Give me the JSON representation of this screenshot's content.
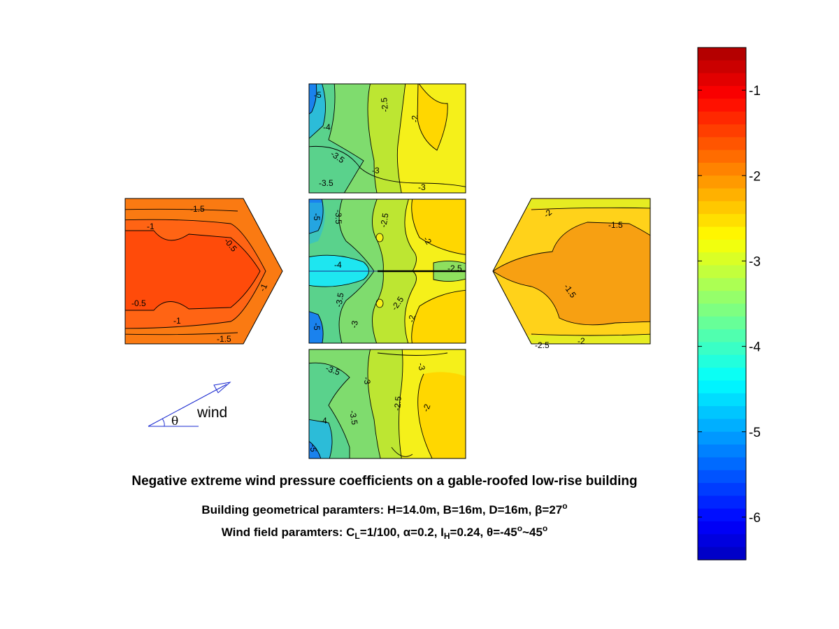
{
  "chart_data": {
    "type": "heatmap",
    "title": "Negative extreme wind pressure coefficients on a gable-roofed low-rise building",
    "subtitle_geometry": {
      "prefix": "Building geometrical paramters: H=14.0m, B=16m, D=16m, ",
      "beta": "β",
      "beta_value": "=27",
      "degree_sup": "o"
    },
    "subtitle_wind": {
      "cl_main": "C",
      "cl_sub": "L",
      "cl_value": "=1/100, ",
      "alpha": "α",
      "alpha_value": "=0.2, I",
      "ih_sub": "H",
      "ih_value": "=0.24, ",
      "theta": "θ",
      "theta_value": "=-45",
      "deg1": "o",
      "tilde": "~45",
      "deg2": "o"
    },
    "colorbar": {
      "range": [
        -6.5,
        -0.5
      ],
      "ticks": [
        -1,
        -2,
        -3,
        -4,
        -5,
        -6
      ],
      "tick_labels": [
        "-1",
        "-2",
        "-3",
        "-4",
        "-5",
        "-6"
      ],
      "colormap": "jet",
      "levels": 40
    },
    "wind_indicator": {
      "label": "wind",
      "angle_symbol": "θ"
    },
    "panels": [
      {
        "name": "left-end-wall",
        "contour_labels": [
          "-1.5",
          "-1",
          "-0.5",
          "-0.5",
          "-1",
          "-1",
          "-1.5"
        ],
        "value_range": [
          -1.5,
          -0.5
        ]
      },
      {
        "name": "top-side-wall",
        "contour_labels": [
          "-5",
          "-4",
          "-3.5",
          "-3.5",
          "-3",
          "-2.5",
          "-2",
          "-3"
        ],
        "value_range": [
          -5,
          -2
        ]
      },
      {
        "name": "roof",
        "contour_labels": [
          "-5",
          "-3.5",
          "-4",
          "-3.5",
          "-3",
          "-5",
          "-2.5",
          "-2",
          "-2.5",
          "-2.5",
          "-2"
        ],
        "value_range": [
          -5,
          -2
        ]
      },
      {
        "name": "bottom-side-wall",
        "contour_labels": [
          "-3.5",
          "-3",
          "-3",
          "-4",
          "-3.5",
          "-2.5",
          "-2",
          "-5"
        ],
        "value_range": [
          -5,
          -2
        ]
      },
      {
        "name": "right-end-wall",
        "contour_labels": [
          "-2",
          "-1.5",
          "-1.5",
          "-2.5",
          "-2"
        ],
        "value_range": [
          -2.5,
          -1.5
        ]
      }
    ]
  }
}
